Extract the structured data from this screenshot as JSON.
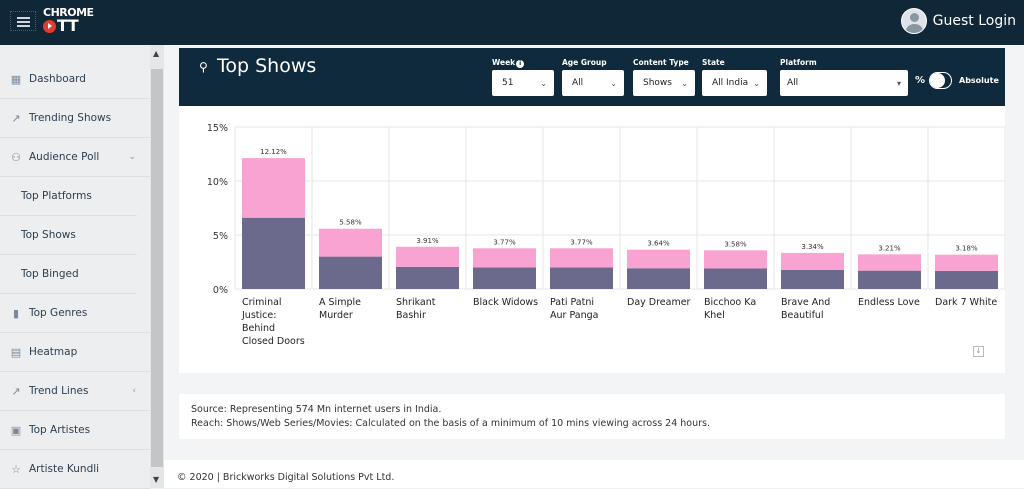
{
  "app": {
    "logo_top": "CHROME",
    "logo_bottom": "TT",
    "user_label": "Guest Login"
  },
  "sidebar": {
    "items": [
      {
        "label": "Dashboard",
        "icon": "grid-icon"
      },
      {
        "label": "Trending Shows",
        "icon": "trend-icon"
      },
      {
        "label": "Audience Poll",
        "icon": "user-check-icon",
        "expanded": true
      },
      {
        "label": "Top Platforms",
        "sub": true
      },
      {
        "label": "Top Shows",
        "sub": true
      },
      {
        "label": "Top Binged",
        "sub": true
      },
      {
        "label": "Top Genres",
        "icon": "bar-chart-icon"
      },
      {
        "label": "Heatmap",
        "icon": "map-icon"
      },
      {
        "label": "Trend Lines",
        "icon": "trend-icon"
      },
      {
        "label": "Top Artistes",
        "icon": "film-icon"
      },
      {
        "label": "Artiste Kundli",
        "icon": "star-icon"
      }
    ]
  },
  "header": {
    "title": "Top Shows",
    "filters": {
      "week": {
        "label": "Week",
        "value": "51"
      },
      "age": {
        "label": "Age Group",
        "value": "All"
      },
      "content": {
        "label": "Content Type",
        "value": "Shows"
      },
      "state": {
        "label": "State",
        "value": "All India"
      },
      "platform": {
        "label": "Platform",
        "value": "All"
      }
    },
    "toggle": {
      "left": "%",
      "right": "Absolute",
      "on": false
    }
  },
  "chart_data": {
    "type": "bar",
    "stacked": true,
    "categories": [
      "Criminal Justice: Behind Closed Doors",
      "A Simple Murder",
      "Shrikant Bashir",
      "Black Widows",
      "Pati Patni Aur Panga",
      "Day Dreamer",
      "Bicchoo Ka Khel",
      "Brave And Beautiful",
      "Endless Love",
      "Dark 7 White"
    ],
    "totals": [
      12.12,
      5.58,
      3.91,
      3.77,
      3.77,
      3.64,
      3.58,
      3.34,
      3.21,
      3.18
    ],
    "data_labels": [
      "12.12%",
      "5.58%",
      "3.91%",
      "3.77%",
      "3.77%",
      "3.64%",
      "3.58%",
      "3.34%",
      "3.21%",
      "3.18%"
    ],
    "series": [
      {
        "values": [
          6.6,
          3.0,
          2.05,
          2.0,
          2.0,
          1.92,
          1.9,
          1.76,
          1.7,
          1.68
        ],
        "color": "#6b6a8c"
      },
      {
        "values": [
          5.52,
          2.58,
          1.86,
          1.77,
          1.77,
          1.72,
          1.68,
          1.58,
          1.51,
          1.5
        ],
        "color": "#f9a3d3"
      }
    ],
    "yticks": [
      "0%",
      "5%",
      "10%",
      "15%"
    ],
    "ylim": [
      0,
      15
    ],
    "grid": true
  },
  "note": {
    "line1": "Source: Representing 574 Mn internet users in India.",
    "line2": "Reach: Shows/Web Series/Movies: Calculated on the basis of a minimum of 10 mins viewing across 24 hours."
  },
  "footer": "© 2020 | Brickworks Digital Solutions Pvt Ltd."
}
